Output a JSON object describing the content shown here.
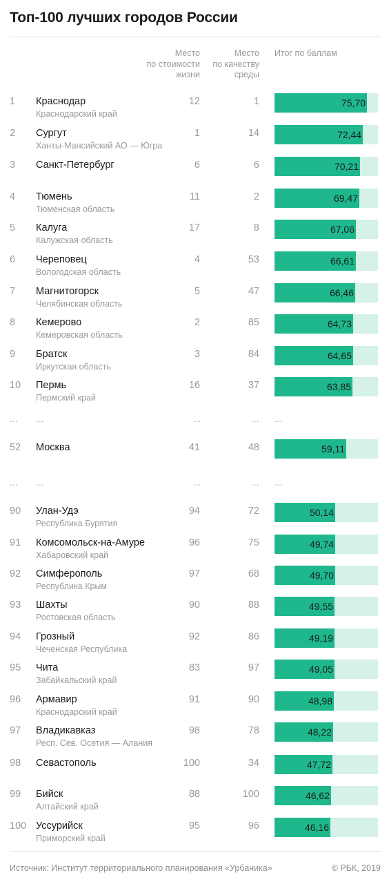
{
  "title": "Топ-100 лучших городов России",
  "headers": {
    "cost": [
      "Место",
      "по стоимости",
      "жизни"
    ],
    "env": [
      "Место",
      "по качеству",
      "среды"
    ],
    "score": "Итог по баллам"
  },
  "ellipsis": "...",
  "footer": {
    "source": "Источник: Институт территориального планирования «Урбаника»",
    "copyright": "© РБК, 2019"
  },
  "colors": {
    "bar": "#1fb88d",
    "track": "#d5f1e8"
  },
  "chart_data": {
    "type": "bar",
    "title": "Топ-100 лучших городов России",
    "xlim": [
      0,
      85
    ],
    "series": [
      {
        "name": "Итог по баллам"
      }
    ],
    "rows": [
      {
        "rank": "1",
        "city": "Краснодар",
        "region": "Краснодарский край",
        "cost": "12",
        "env": "1",
        "score": 75.7,
        "label": "75,70"
      },
      {
        "rank": "2",
        "city": "Сургут",
        "region": "Ханты-Мансийский АО — Югра",
        "cost": "1",
        "env": "14",
        "score": 72.44,
        "label": "72,44"
      },
      {
        "rank": "3",
        "city": "Санкт-Петербург",
        "region": "",
        "cost": "6",
        "env": "6",
        "score": 70.21,
        "label": "70,21"
      },
      {
        "rank": "4",
        "city": "Тюмень",
        "region": "Тюменская область",
        "cost": "11",
        "env": "2",
        "score": 69.47,
        "label": "69,47"
      },
      {
        "rank": "5",
        "city": "Калуга",
        "region": "Калужская область",
        "cost": "17",
        "env": "8",
        "score": 67.06,
        "label": "67,06"
      },
      {
        "rank": "6",
        "city": "Череповец",
        "region": "Вологодская область",
        "cost": "4",
        "env": "53",
        "score": 66.61,
        "label": "66,61"
      },
      {
        "rank": "7",
        "city": "Магнитогорск",
        "region": "Челябинская область",
        "cost": "5",
        "env": "47",
        "score": 66.46,
        "label": "66,46"
      },
      {
        "rank": "8",
        "city": "Кемерово",
        "region": "Кемеровская область",
        "cost": "2",
        "env": "85",
        "score": 64.73,
        "label": "64,73"
      },
      {
        "rank": "9",
        "city": "Братск",
        "region": "Иркутская область",
        "cost": "3",
        "env": "84",
        "score": 64.65,
        "label": "64,65"
      },
      {
        "rank": "10",
        "city": "Пермь",
        "region": "Пермский край",
        "cost": "16",
        "env": "37",
        "score": 63.85,
        "label": "63,85"
      },
      {
        "rank": "52",
        "city": "Москва",
        "region": "",
        "cost": "41",
        "env": "48",
        "score": 59.11,
        "label": "59,11"
      },
      {
        "rank": "90",
        "city": "Улан-Удэ",
        "region": "Республика Бурятия",
        "cost": "94",
        "env": "72",
        "score": 50.14,
        "label": "50,14"
      },
      {
        "rank": "91",
        "city": "Комсомольск-на-Амуре",
        "region": "Хабаровский край",
        "cost": "96",
        "env": "75",
        "score": 49.74,
        "label": "49,74"
      },
      {
        "rank": "92",
        "city": "Симферополь",
        "region": "Республика Крым",
        "cost": "97",
        "env": "68",
        "score": 49.7,
        "label": "49,70"
      },
      {
        "rank": "93",
        "city": "Шахты",
        "region": "Ростовская область",
        "cost": "90",
        "env": "88",
        "score": 49.55,
        "label": "49,55"
      },
      {
        "rank": "94",
        "city": "Грозный",
        "region": "Чеченская Республика",
        "cost": "92",
        "env": "86",
        "score": 49.19,
        "label": "49,19"
      },
      {
        "rank": "95",
        "city": "Чита",
        "region": "Забайкальский край",
        "cost": "83",
        "env": "97",
        "score": 49.05,
        "label": "49,05"
      },
      {
        "rank": "96",
        "city": "Армавир",
        "region": "Краснодарский край",
        "cost": "91",
        "env": "90",
        "score": 48.98,
        "label": "48,98"
      },
      {
        "rank": "97",
        "city": "Владикавказ",
        "region": "Респ. Сев. Осетия — Алания",
        "cost": "98",
        "env": "78",
        "score": 48.22,
        "label": "48,22"
      },
      {
        "rank": "98",
        "city": "Севастополь",
        "region": "",
        "cost": "100",
        "env": "34",
        "score": 47.72,
        "label": "47,72"
      },
      {
        "rank": "99",
        "city": "Бийск",
        "region": "Алтайский край",
        "cost": "88",
        "env": "100",
        "score": 46.62,
        "label": "46,62"
      },
      {
        "rank": "100",
        "city": "Уссурийск",
        "region": "Приморский край",
        "cost": "95",
        "env": "96",
        "score": 46.16,
        "label": "46,16"
      }
    ]
  }
}
